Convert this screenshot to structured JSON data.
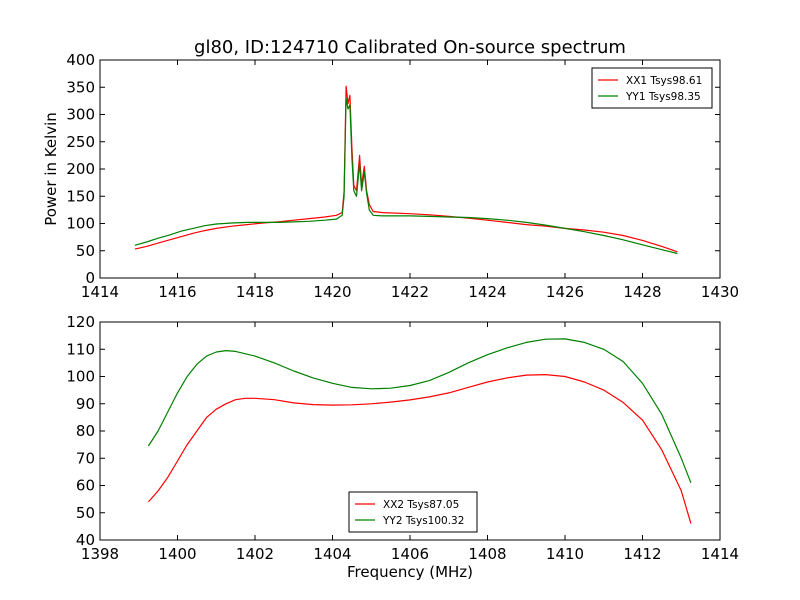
{
  "chart_data": [
    {
      "type": "line",
      "title": "gl80, ID:124710 Calibrated On-source spectrum",
      "xlabel": "",
      "ylabel": "Power in Kelvin",
      "xlim": [
        1414,
        1430
      ],
      "ylim": [
        0,
        400
      ],
      "xticks": [
        "1414",
        "1416",
        "1418",
        "1420",
        "1422",
        "1424",
        "1426",
        "1428",
        "1430"
      ],
      "yticks": [
        "0",
        "50",
        "100",
        "150",
        "200",
        "250",
        "300",
        "350",
        "400"
      ],
      "legend_position": "top-right",
      "grid": false,
      "series": [
        {
          "name": "XX1 Tsys98.61",
          "color": "#ff0000",
          "points": [
            [
              1414.9,
              53
            ],
            [
              1415.2,
              58
            ],
            [
              1415.5,
              64
            ],
            [
              1415.8,
              70
            ],
            [
              1416.1,
              76
            ],
            [
              1416.4,
              82
            ],
            [
              1416.7,
              87
            ],
            [
              1417.0,
              91
            ],
            [
              1417.4,
              95
            ],
            [
              1417.8,
              98
            ],
            [
              1418.2,
              101
            ],
            [
              1418.6,
              103
            ],
            [
              1419.0,
              106
            ],
            [
              1419.4,
              109
            ],
            [
              1419.8,
              112
            ],
            [
              1420.1,
              115
            ],
            [
              1420.25,
              120
            ],
            [
              1420.3,
              160
            ],
            [
              1420.35,
              352
            ],
            [
              1420.4,
              320
            ],
            [
              1420.45,
              335
            ],
            [
              1420.5,
              240
            ],
            [
              1420.55,
              170
            ],
            [
              1420.62,
              160
            ],
            [
              1420.7,
              225
            ],
            [
              1420.75,
              170
            ],
            [
              1420.82,
              205
            ],
            [
              1420.88,
              160
            ],
            [
              1420.95,
              135
            ],
            [
              1421.05,
              122
            ],
            [
              1421.3,
              120
            ],
            [
              1422.0,
              118
            ],
            [
              1422.5,
              116
            ],
            [
              1423.0,
              113
            ],
            [
              1423.5,
              110
            ],
            [
              1424.0,
              106
            ],
            [
              1424.5,
              102
            ],
            [
              1425.0,
              98
            ],
            [
              1425.5,
              95
            ],
            [
              1426.0,
              91
            ],
            [
              1426.5,
              88
            ],
            [
              1427.0,
              84
            ],
            [
              1427.5,
              78
            ],
            [
              1428.0,
              69
            ],
            [
              1428.5,
              58
            ],
            [
              1428.9,
              48
            ]
          ]
        },
        {
          "name": "YY1 Tsys98.35",
          "color": "#008000",
          "points": [
            [
              1414.9,
              60
            ],
            [
              1415.2,
              66
            ],
            [
              1415.5,
              73
            ],
            [
              1415.8,
              79
            ],
            [
              1416.1,
              86
            ],
            [
              1416.4,
              91
            ],
            [
              1416.7,
              96
            ],
            [
              1417.0,
              99
            ],
            [
              1417.4,
              101
            ],
            [
              1417.8,
              102
            ],
            [
              1418.2,
              102
            ],
            [
              1418.6,
              102
            ],
            [
              1419.0,
              103
            ],
            [
              1419.4,
              104
            ],
            [
              1419.8,
              106
            ],
            [
              1420.1,
              108
            ],
            [
              1420.25,
              115
            ],
            [
              1420.3,
              150
            ],
            [
              1420.35,
              330
            ],
            [
              1420.4,
              310
            ],
            [
              1420.45,
              318
            ],
            [
              1420.5,
              220
            ],
            [
              1420.55,
              160
            ],
            [
              1420.62,
              150
            ],
            [
              1420.7,
              210
            ],
            [
              1420.75,
              160
            ],
            [
              1420.82,
              195
            ],
            [
              1420.88,
              155
            ],
            [
              1420.95,
              125
            ],
            [
              1421.05,
              115
            ],
            [
              1421.3,
              114
            ],
            [
              1422.0,
              114
            ],
            [
              1422.5,
              113
            ],
            [
              1423.0,
              112
            ],
            [
              1423.5,
              111
            ],
            [
              1424.0,
              109
            ],
            [
              1424.5,
              106
            ],
            [
              1425.0,
              102
            ],
            [
              1425.5,
              97
            ],
            [
              1426.0,
              91
            ],
            [
              1426.5,
              85
            ],
            [
              1427.0,
              78
            ],
            [
              1427.5,
              70
            ],
            [
              1428.0,
              61
            ],
            [
              1428.5,
              52
            ],
            [
              1428.9,
              45
            ]
          ]
        }
      ]
    },
    {
      "type": "line",
      "title": "",
      "xlabel": "Frequency (MHz)",
      "ylabel": "",
      "xlim": [
        1398,
        1414
      ],
      "ylim": [
        40,
        120
      ],
      "xticks": [
        "1398",
        "1400",
        "1402",
        "1404",
        "1406",
        "1408",
        "1410",
        "1412",
        "1414"
      ],
      "yticks": [
        "40",
        "50",
        "60",
        "70",
        "80",
        "90",
        "100",
        "110",
        "120"
      ],
      "legend_position": "lower-center",
      "grid": false,
      "series": [
        {
          "name": "XX2 Tsys87.05",
          "color": "#ff0000",
          "points": [
            [
              1399.25,
              54
            ],
            [
              1399.5,
              58
            ],
            [
              1399.75,
              63
            ],
            [
              1400.0,
              69
            ],
            [
              1400.25,
              75
            ],
            [
              1400.5,
              80
            ],
            [
              1400.75,
              85
            ],
            [
              1401.0,
              88
            ],
            [
              1401.25,
              90
            ],
            [
              1401.5,
              91.5
            ],
            [
              1401.75,
              92
            ],
            [
              1402.0,
              92
            ],
            [
              1402.5,
              91.5
            ],
            [
              1403.0,
              90.3
            ],
            [
              1403.5,
              89.7
            ],
            [
              1404.0,
              89.5
            ],
            [
              1404.5,
              89.6
            ],
            [
              1405.0,
              90
            ],
            [
              1405.5,
              90.6
            ],
            [
              1406.0,
              91.4
            ],
            [
              1406.5,
              92.5
            ],
            [
              1407.0,
              94
            ],
            [
              1407.5,
              96
            ],
            [
              1408.0,
              98
            ],
            [
              1408.5,
              99.5
            ],
            [
              1409.0,
              100.5
            ],
            [
              1409.5,
              100.7
            ],
            [
              1410.0,
              100
            ],
            [
              1410.5,
              98
            ],
            [
              1411.0,
              95
            ],
            [
              1411.5,
              90.5
            ],
            [
              1412.0,
              84
            ],
            [
              1412.5,
              73
            ],
            [
              1413.0,
              58
            ],
            [
              1413.25,
              46
            ]
          ]
        },
        {
          "name": "YY2 Tsys100.32",
          "color": "#008000",
          "points": [
            [
              1399.25,
              74.5
            ],
            [
              1399.5,
              80
            ],
            [
              1399.75,
              87
            ],
            [
              1400.0,
              94
            ],
            [
              1400.25,
              100
            ],
            [
              1400.5,
              104.5
            ],
            [
              1400.75,
              107.5
            ],
            [
              1401.0,
              109
            ],
            [
              1401.25,
              109.5
            ],
            [
              1401.5,
              109.2
            ],
            [
              1402.0,
              107.5
            ],
            [
              1402.5,
              105
            ],
            [
              1403.0,
              102
            ],
            [
              1403.5,
              99.5
            ],
            [
              1404.0,
              97.5
            ],
            [
              1404.5,
              96
            ],
            [
              1405.0,
              95.5
            ],
            [
              1405.5,
              95.7
            ],
            [
              1406.0,
              96.7
            ],
            [
              1406.5,
              98.5
            ],
            [
              1407.0,
              101.5
            ],
            [
              1407.5,
              105
            ],
            [
              1408.0,
              108
            ],
            [
              1408.5,
              110.5
            ],
            [
              1409.0,
              112.5
            ],
            [
              1409.5,
              113.7
            ],
            [
              1410.0,
              113.8
            ],
            [
              1410.5,
              112.5
            ],
            [
              1411.0,
              110
            ],
            [
              1411.5,
              105.5
            ],
            [
              1412.0,
              97.5
            ],
            [
              1412.5,
              86
            ],
            [
              1413.0,
              70
            ],
            [
              1413.25,
              61
            ]
          ]
        }
      ]
    }
  ]
}
